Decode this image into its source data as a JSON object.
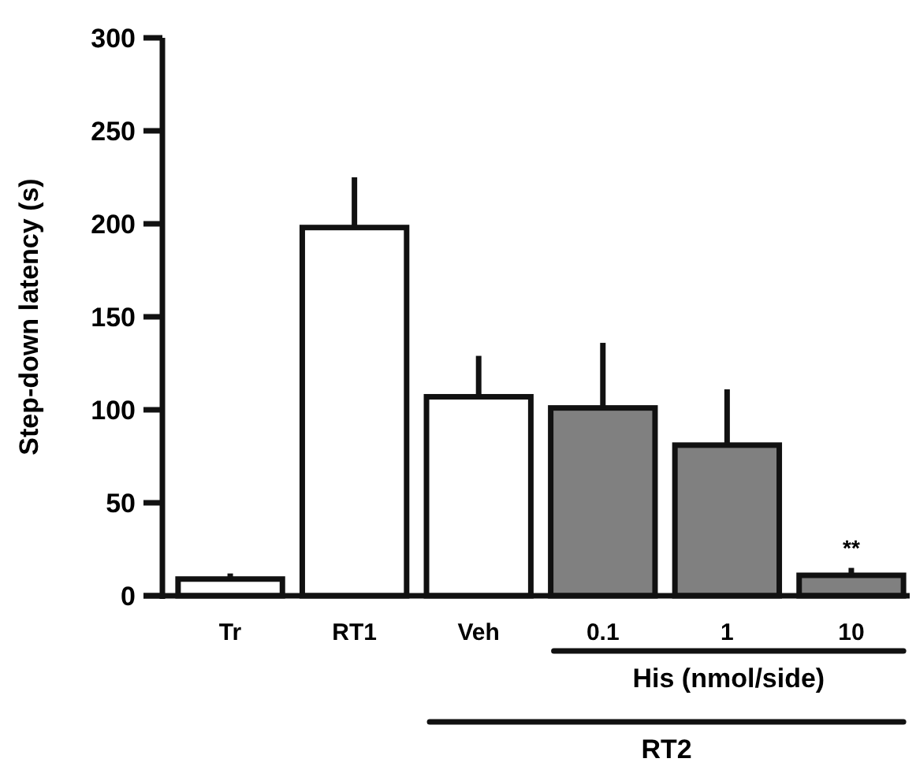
{
  "chart_data": {
    "type": "bar",
    "ylabel": "Step-down latency (s)",
    "categories": [
      "Tr",
      "RT1",
      "Veh",
      "0.1",
      "1",
      "10"
    ],
    "values": [
      9,
      198,
      107,
      101,
      81,
      11
    ],
    "colors": [
      "#ffffff",
      "#ffffff",
      "#ffffff",
      "#808080",
      "#808080",
      "#808080"
    ],
    "errors": [
      [
        9,
        12
      ],
      [
        198,
        225
      ],
      [
        107,
        129
      ],
      [
        101,
        136
      ],
      [
        81,
        111
      ],
      [
        11,
        15
      ]
    ],
    "ylim": [
      0,
      300
    ],
    "yticks": [
      0,
      50,
      100,
      150,
      200,
      250,
      300
    ],
    "grid": false,
    "annotations": [
      {
        "text": "**",
        "x": "10",
        "y": 15
      },
      "His (nmol/side)",
      "RT2"
    ]
  }
}
